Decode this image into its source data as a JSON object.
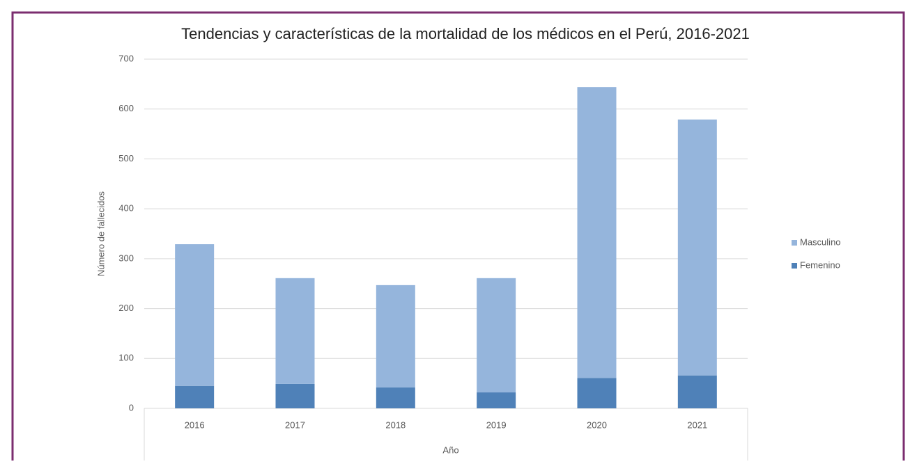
{
  "chart_data": {
    "type": "bar",
    "stacked": true,
    "title": "Tendencias y características de la mortalidad de los médicos en el Perú, 2016-2021",
    "x_label": "Año",
    "y_label": "Número de fallecidos",
    "categories": [
      "2016",
      "2017",
      "2018",
      "2019",
      "2020",
      "2021"
    ],
    "series": [
      {
        "name": "Masculino",
        "color": "#95b5dc",
        "values": [
          284,
          212,
          205,
          229,
          583,
          513
        ]
      },
      {
        "name": "Femenino",
        "color": "#4f81b8",
        "values": [
          45,
          49,
          42,
          32,
          61,
          66
        ]
      }
    ],
    "ylim": [
      0,
      700
    ],
    "yticks": [
      0,
      100,
      200,
      300,
      400,
      500,
      600,
      700
    ],
    "grid": true,
    "legend": "right"
  }
}
